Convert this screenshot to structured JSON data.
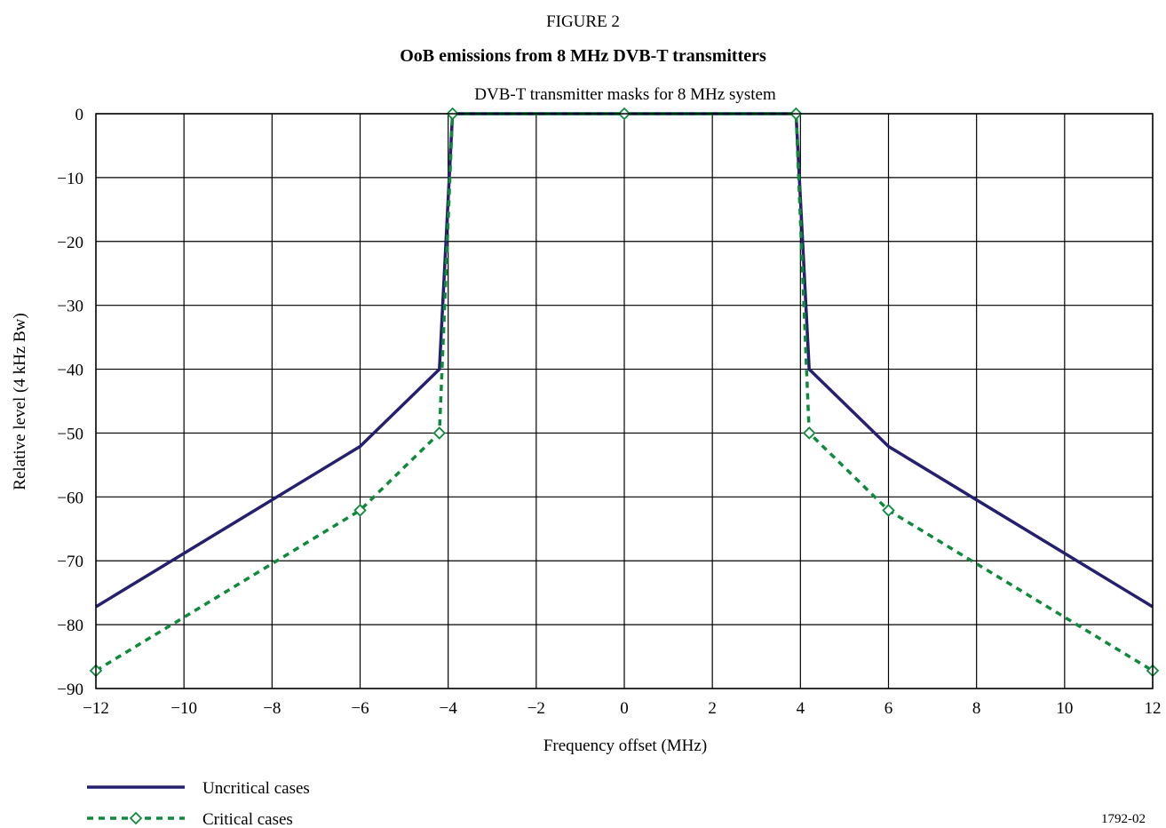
{
  "figure_label": "FIGURE 2",
  "figure_title": "OoB emissions from 8 MHz DVB-T transmitters",
  "reference": "1792-02",
  "colors": {
    "uncritical": "#24206f",
    "critical": "#0f8a3c",
    "grid": "#000000"
  },
  "chart_data": {
    "type": "line",
    "title": "DVB-T transmitter masks for 8 MHz system",
    "xlabel": "Frequency offset (MHz)",
    "ylabel": "Relative level (4 kHz Bw)",
    "xlim": [
      -12,
      12
    ],
    "ylim": [
      -90,
      0
    ],
    "xticks": [
      -12,
      -10,
      -8,
      -6,
      -4,
      -2,
      0,
      2,
      4,
      6,
      8,
      10,
      12
    ],
    "yticks": [
      0,
      -10,
      -20,
      -30,
      -40,
      -50,
      -60,
      -70,
      -80,
      -90
    ],
    "xtick_labels": [
      "−12",
      "−10",
      "−8",
      "−6",
      "−4",
      "−2",
      "0",
      "2",
      "4",
      "6",
      "8",
      "10",
      "12"
    ],
    "ytick_labels": [
      "0",
      "−10",
      "−20",
      "−30",
      "−40",
      "−50",
      "−60",
      "−70",
      "−80",
      "−90"
    ],
    "grid": true,
    "legend_position": "bottom-left",
    "series": [
      {
        "name": "Uncritical cases",
        "style": "solid",
        "markers": false,
        "x": [
          -12,
          -6,
          -4.2,
          -3.9,
          3.9,
          4.2,
          6,
          12
        ],
        "y": [
          -77.2,
          -52.1,
          -40,
          0,
          0,
          -40,
          -52.1,
          -77.2
        ]
      },
      {
        "name": "Critical cases",
        "style": "dashed",
        "markers": true,
        "x": [
          -12,
          -6,
          -4.2,
          -3.9,
          0,
          3.9,
          4.2,
          6,
          12
        ],
        "y": [
          -87.2,
          -62.1,
          -50,
          0,
          0,
          0,
          -50,
          -62.1,
          -87.2
        ]
      }
    ]
  }
}
